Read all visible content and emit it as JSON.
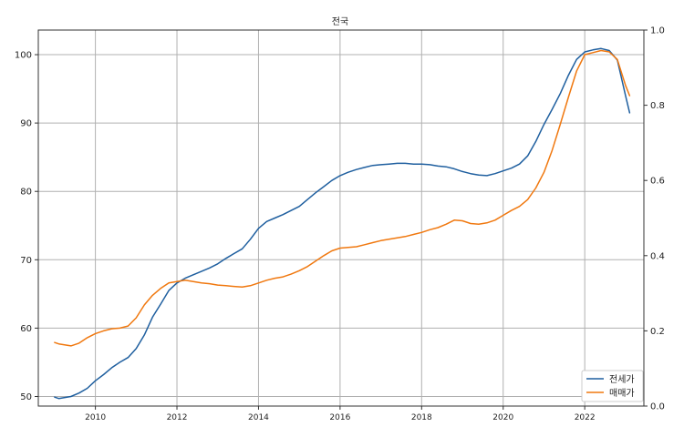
{
  "chart_data": {
    "type": "line",
    "title": "전국",
    "xlabel": "",
    "ylabel": "",
    "x_unit": "year",
    "xlim": [
      2008.6,
      2023.45
    ],
    "ylim": [
      48.6,
      103.6
    ],
    "y2lim": [
      0.0,
      1.0
    ],
    "x_ticks": [
      2010,
      2012,
      2014,
      2016,
      2018,
      2020,
      2022
    ],
    "y_ticks": [
      50,
      60,
      70,
      80,
      90,
      100
    ],
    "y2_ticks": [
      0.0,
      0.2,
      0.4,
      0.6,
      0.8,
      1.0
    ],
    "grid": true,
    "legend_position": "bottom-right",
    "series": [
      {
        "name": "전세가",
        "color": "#1f5f9f",
        "x": [
          2009.0,
          2009.1,
          2009.4,
          2009.6,
          2009.8,
          2010.0,
          2010.2,
          2010.4,
          2010.6,
          2010.8,
          2011.0,
          2011.2,
          2011.4,
          2011.6,
          2011.8,
          2012.0,
          2012.2,
          2012.4,
          2012.6,
          2012.8,
          2013.0,
          2013.2,
          2013.4,
          2013.6,
          2013.8,
          2014.0,
          2014.2,
          2014.4,
          2014.6,
          2014.8,
          2015.0,
          2015.2,
          2015.4,
          2015.6,
          2015.8,
          2016.0,
          2016.2,
          2016.4,
          2016.6,
          2016.8,
          2017.0,
          2017.2,
          2017.4,
          2017.6,
          2017.8,
          2018.0,
          2018.2,
          2018.4,
          2018.6,
          2018.8,
          2019.0,
          2019.2,
          2019.4,
          2019.6,
          2019.8,
          2020.0,
          2020.2,
          2020.4,
          2020.6,
          2020.8,
          2021.0,
          2021.2,
          2021.4,
          2021.6,
          2021.8,
          2022.0,
          2022.2,
          2022.4,
          2022.6,
          2022.8,
          2023.0,
          2023.1
        ],
        "values": [
          49.9,
          49.7,
          50.0,
          50.5,
          51.2,
          52.3,
          53.2,
          54.2,
          55.0,
          55.7,
          57.0,
          59.0,
          61.6,
          63.5,
          65.5,
          66.6,
          67.3,
          67.8,
          68.3,
          68.8,
          69.4,
          70.2,
          70.9,
          71.6,
          73.0,
          74.6,
          75.6,
          76.1,
          76.6,
          77.2,
          77.8,
          78.8,
          79.8,
          80.7,
          81.6,
          82.3,
          82.8,
          83.2,
          83.5,
          83.8,
          83.9,
          84.0,
          84.1,
          84.1,
          84.0,
          84.0,
          83.9,
          83.7,
          83.6,
          83.3,
          82.9,
          82.6,
          82.4,
          82.3,
          82.6,
          83.0,
          83.4,
          84.0,
          85.2,
          87.3,
          89.8,
          92.0,
          94.3,
          97.0,
          99.3,
          100.4,
          100.7,
          100.9,
          100.6,
          99.2,
          94.0,
          91.5
        ]
      },
      {
        "name": "매매가",
        "color": "#f0780f",
        "x": [
          2009.0,
          2009.1,
          2009.4,
          2009.6,
          2009.8,
          2010.0,
          2010.2,
          2010.4,
          2010.6,
          2010.8,
          2011.0,
          2011.2,
          2011.4,
          2011.6,
          2011.8,
          2012.0,
          2012.2,
          2012.4,
          2012.6,
          2012.8,
          2013.0,
          2013.2,
          2013.4,
          2013.6,
          2013.8,
          2014.0,
          2014.2,
          2014.4,
          2014.6,
          2014.8,
          2015.0,
          2015.2,
          2015.4,
          2015.6,
          2015.8,
          2016.0,
          2016.2,
          2016.4,
          2016.6,
          2016.8,
          2017.0,
          2017.2,
          2017.4,
          2017.6,
          2017.8,
          2018.0,
          2018.2,
          2018.4,
          2018.6,
          2018.8,
          2019.0,
          2019.2,
          2019.4,
          2019.6,
          2019.8,
          2020.0,
          2020.2,
          2020.4,
          2020.6,
          2020.8,
          2021.0,
          2021.2,
          2021.4,
          2021.6,
          2021.8,
          2022.0,
          2022.2,
          2022.4,
          2022.6,
          2022.8,
          2023.0,
          2023.1
        ],
        "values": [
          57.9,
          57.7,
          57.4,
          57.8,
          58.6,
          59.2,
          59.6,
          59.9,
          60.0,
          60.3,
          61.5,
          63.4,
          64.8,
          65.8,
          66.6,
          66.8,
          67.0,
          66.8,
          66.6,
          66.5,
          66.3,
          66.2,
          66.1,
          66.0,
          66.2,
          66.6,
          67.0,
          67.3,
          67.5,
          67.9,
          68.4,
          69.0,
          69.8,
          70.6,
          71.3,
          71.7,
          71.8,
          71.9,
          72.2,
          72.5,
          72.8,
          73.0,
          73.2,
          73.4,
          73.7,
          74.0,
          74.4,
          74.7,
          75.2,
          75.8,
          75.7,
          75.3,
          75.2,
          75.4,
          75.8,
          76.5,
          77.2,
          77.8,
          78.8,
          80.5,
          82.8,
          86.0,
          89.8,
          93.8,
          97.6,
          100.0,
          100.3,
          100.6,
          100.4,
          99.3,
          95.5,
          94.0
        ]
      }
    ]
  }
}
